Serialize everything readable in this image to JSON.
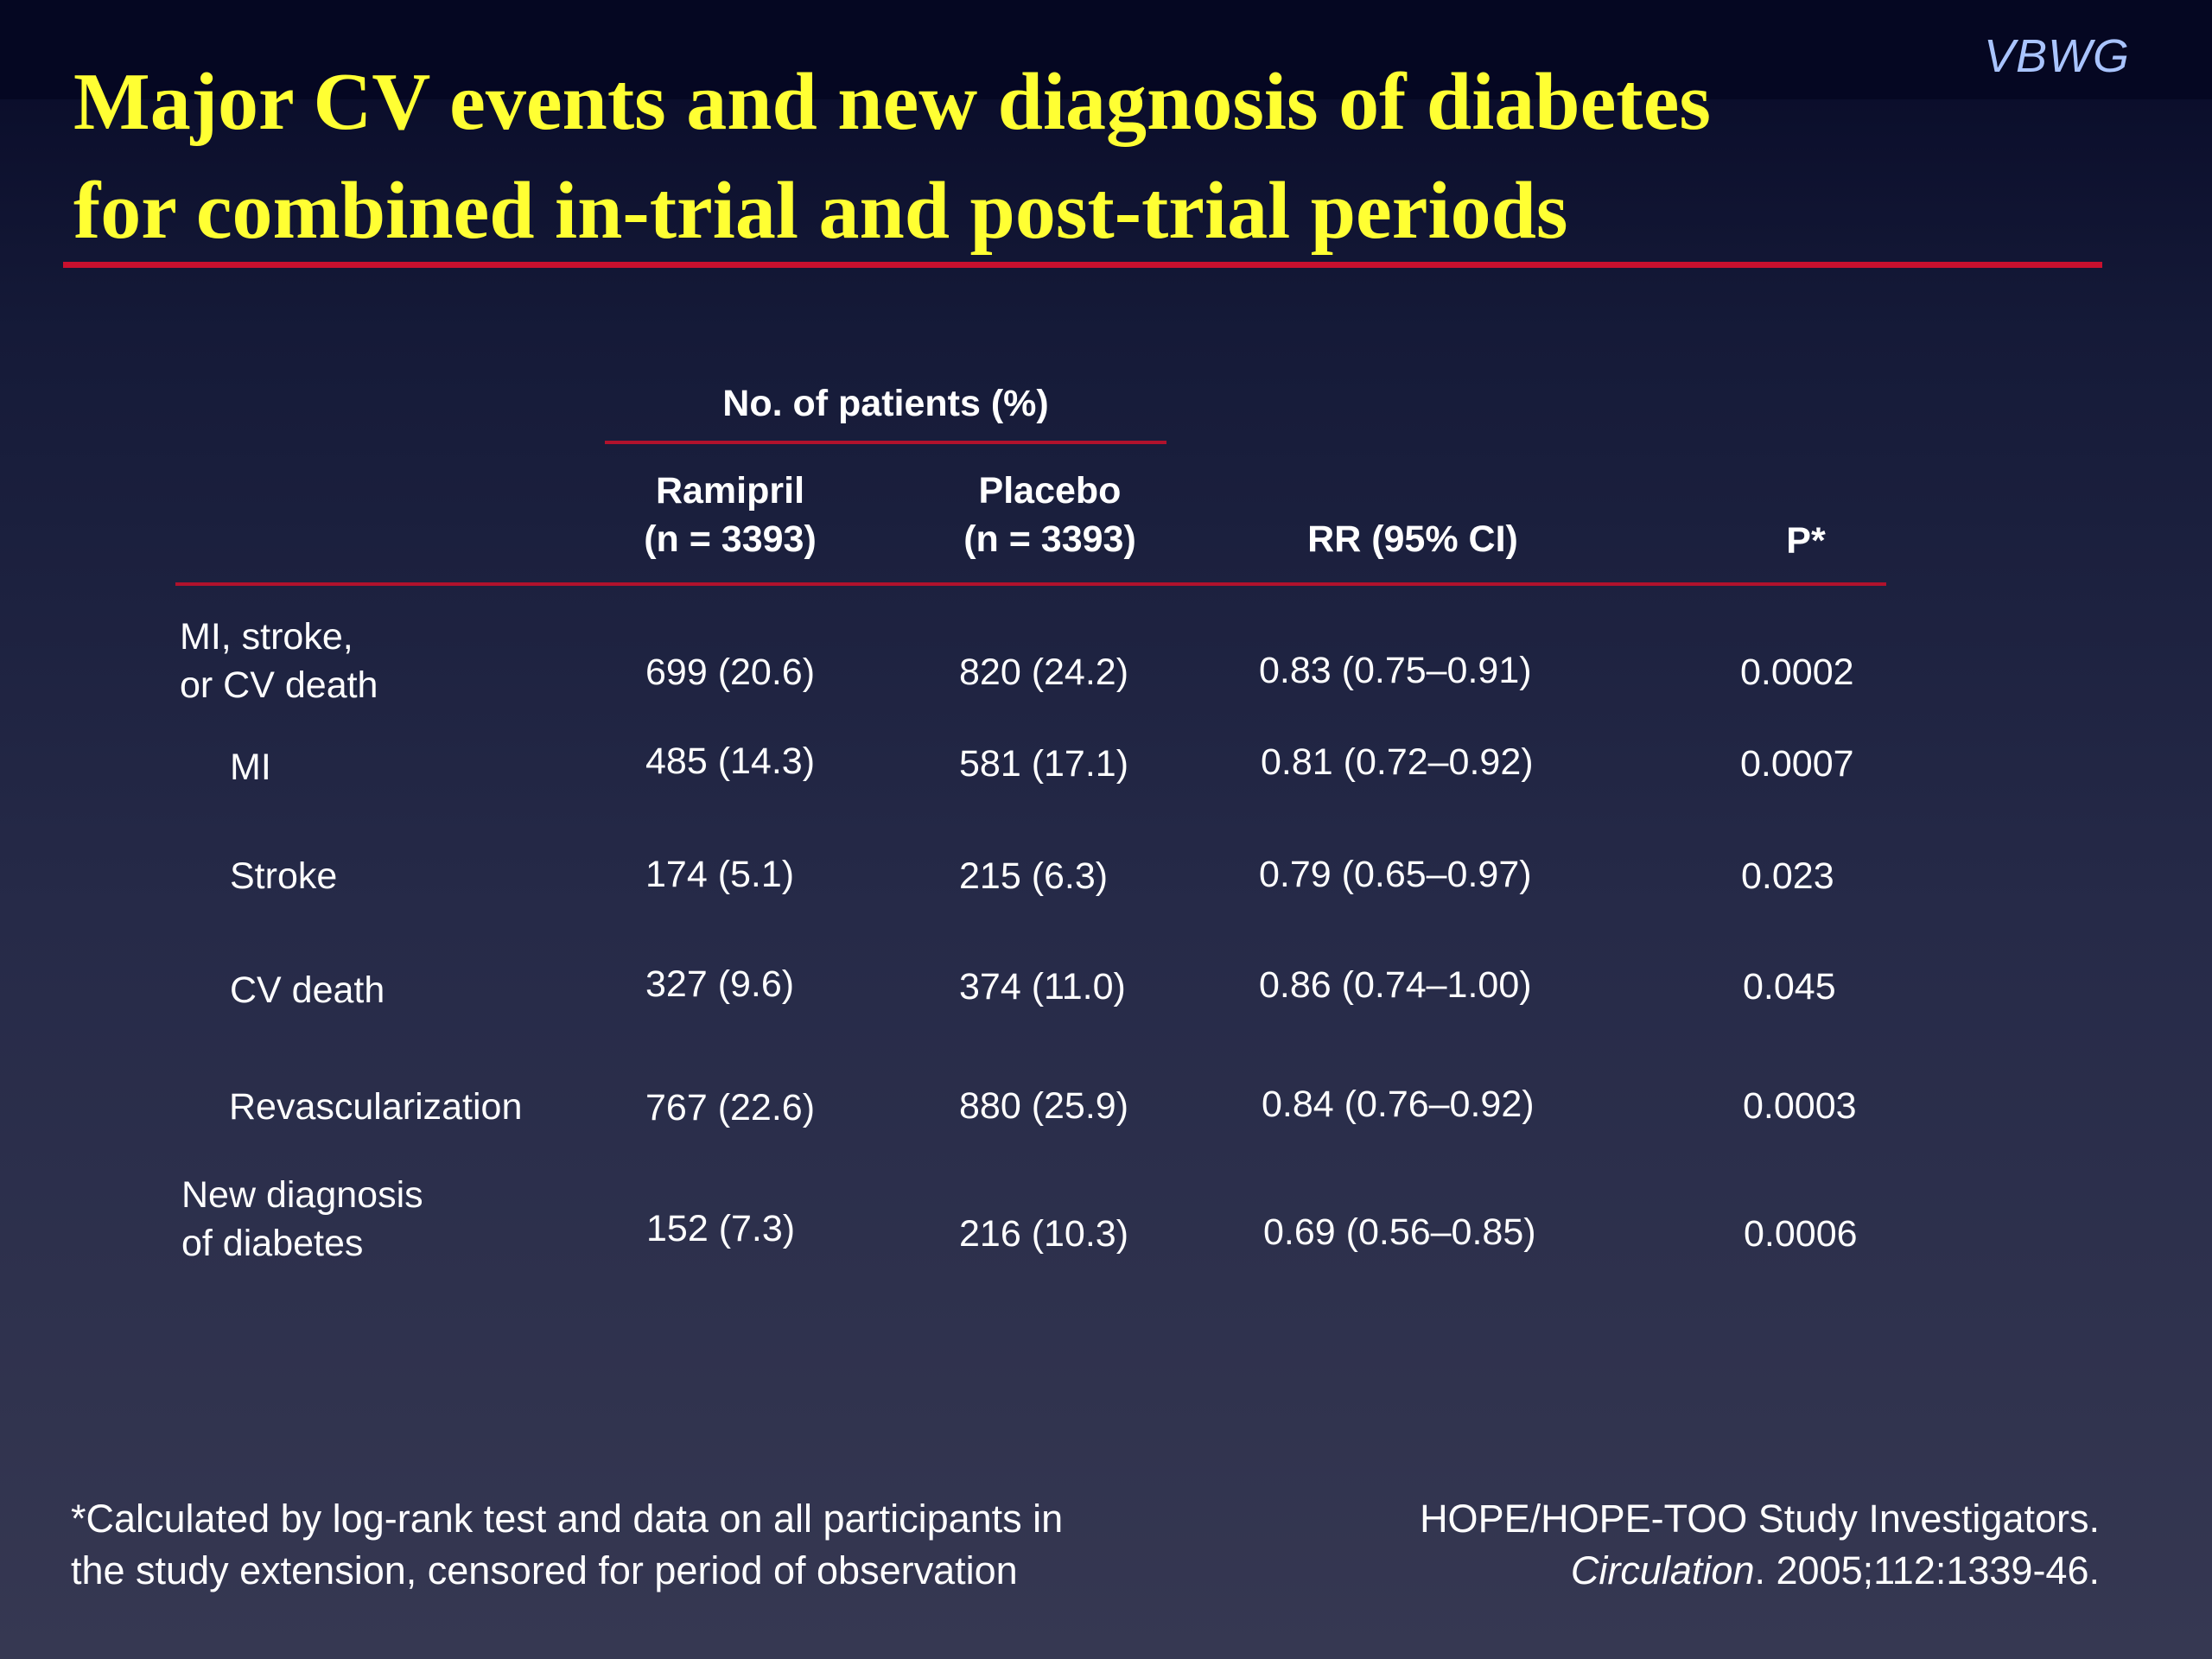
{
  "brand": "VBWG",
  "title": {
    "line1": "Major CV events and new diagnosis of diabetes",
    "line2": "for combined in-trial and post-trial periods"
  },
  "table": {
    "group_header": "No. of patients (%)",
    "columns": {
      "ramipril": {
        "line1": "Ramipril",
        "line2": "(n = 3393)"
      },
      "placebo": {
        "line1": "Placebo",
        "line2": "(n = 3393)"
      },
      "rr": "RR (95% CI)",
      "p": "P*"
    },
    "rows": [
      {
        "label1": "MI, stroke,",
        "label2": "or CV death",
        "ramipril": "699 (20.6)",
        "placebo": "820 (24.2)",
        "rr": "0.83 (0.75–0.91)",
        "p": "0.0002"
      },
      {
        "label1": "MI",
        "label2": "",
        "ramipril": "485 (14.3)",
        "placebo": "581 (17.1)",
        "rr": "0.81 (0.72–0.92)",
        "p": "0.0007"
      },
      {
        "label1": "Stroke",
        "label2": "",
        "ramipril": "174 (5.1)",
        "placebo": "215 (6.3)",
        "rr": "0.79 (0.65–0.97)",
        "p": "0.023"
      },
      {
        "label1": "CV death",
        "label2": "",
        "ramipril": "327 (9.6)",
        "placebo": "374 (11.0)",
        "rr": "0.86 (0.74–1.00)",
        "p": "0.045"
      },
      {
        "label1": "Revascularization",
        "label2": "",
        "ramipril": "767 (22.6)",
        "placebo": "880 (25.9)",
        "rr": "0.84 (0.76–0.92)",
        "p": "0.0003"
      },
      {
        "label1": "New diagnosis",
        "label2": "of diabetes",
        "ramipril": "152 (7.3)",
        "placebo": "216 (10.3)",
        "rr": "0.69 (0.56–0.85)",
        "p": "0.0006"
      }
    ]
  },
  "footnote": {
    "line1": "*Calculated by log-rank test and data on all participants in",
    "line2": "the study extension, censored for period of observation"
  },
  "citation": {
    "line1": "HOPE/HOPE-TOO Study Investigators.",
    "journal": "Circulation",
    "rest": ". 2005;112:1339-46."
  },
  "colors": {
    "title": "#ffff33",
    "rule": "#c8102e",
    "brand": "#a9c4ff"
  }
}
